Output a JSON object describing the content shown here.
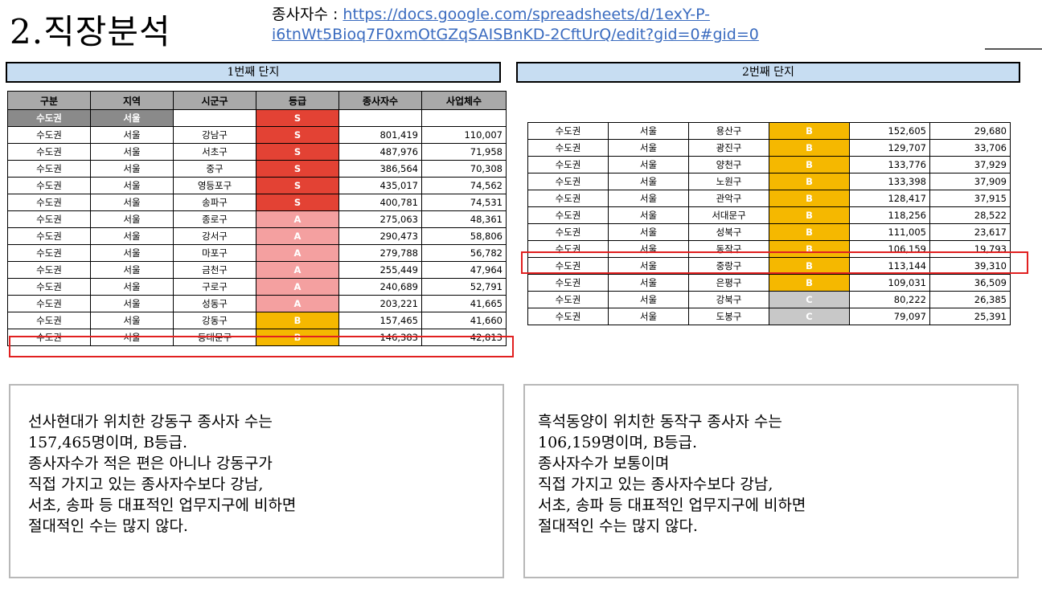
{
  "title": "2.직장분석",
  "source": {
    "label": "종사자수 : ",
    "link_line1": "https://docs.google.com/spreadsheets/d/1exY-P-",
    "link_line2": "i6tnWt5Bioq7F0xmOtGZqSAISBnKD-2CftUrQ/edit?gid=0#gid=0"
  },
  "complex1": {
    "header": "1번째 단지",
    "columns": [
      "구분",
      "지역",
      "시군구",
      "등급",
      "종사자수",
      "사업체수"
    ],
    "capital_row": {
      "segment": "수도권",
      "region": "서울",
      "grade": "S"
    },
    "rows": [
      {
        "seg": "수도권",
        "region": "서울",
        "district": "강남구",
        "grade": "S",
        "workers": "801,419",
        "businesses": "110,007"
      },
      {
        "seg": "수도권",
        "region": "서울",
        "district": "서초구",
        "grade": "S",
        "workers": "487,976",
        "businesses": "71,958"
      },
      {
        "seg": "수도권",
        "region": "서울",
        "district": "중구",
        "grade": "S",
        "workers": "386,564",
        "businesses": "70,308"
      },
      {
        "seg": "수도권",
        "region": "서울",
        "district": "영등포구",
        "grade": "S",
        "workers": "435,017",
        "businesses": "74,562"
      },
      {
        "seg": "수도권",
        "region": "서울",
        "district": "송파구",
        "grade": "S",
        "workers": "400,781",
        "businesses": "74,531"
      },
      {
        "seg": "수도권",
        "region": "서울",
        "district": "종로구",
        "grade": "A",
        "workers": "275,063",
        "businesses": "48,361"
      },
      {
        "seg": "수도권",
        "region": "서울",
        "district": "강서구",
        "grade": "A",
        "workers": "290,473",
        "businesses": "58,806"
      },
      {
        "seg": "수도권",
        "region": "서울",
        "district": "마포구",
        "grade": "A",
        "workers": "279,788",
        "businesses": "56,782"
      },
      {
        "seg": "수도권",
        "region": "서울",
        "district": "금천구",
        "grade": "A",
        "workers": "255,449",
        "businesses": "47,964"
      },
      {
        "seg": "수도권",
        "region": "서울",
        "district": "구로구",
        "grade": "A",
        "workers": "240,689",
        "businesses": "52,791"
      },
      {
        "seg": "수도권",
        "region": "서울",
        "district": "성동구",
        "grade": "A",
        "workers": "203,221",
        "businesses": "41,665"
      },
      {
        "seg": "수도권",
        "region": "서울",
        "district": "강동구",
        "grade": "B",
        "workers": "157,465",
        "businesses": "41,660"
      },
      {
        "seg": "수도권",
        "region": "서울",
        "district": "동대문구",
        "grade": "B",
        "workers": "146,383",
        "businesses": "42,813"
      }
    ],
    "note_lines": [
      "선사현대가 위치한 강동구 종사자 수는",
      "157,465명이며, B등급.",
      "종사자수가 적은 편은 아니나 강동구가",
      "직접 가지고 있는 종사자수보다 강남,",
      "서초, 송파 등 대표적인 업무지구에 비하면",
      "절대적인 수는 많지 않다."
    ]
  },
  "complex2": {
    "header": "2번째 단지",
    "rows": [
      {
        "seg": "수도권",
        "region": "서울",
        "district": "용산구",
        "grade": "B",
        "workers": "152,605",
        "businesses": "29,680"
      },
      {
        "seg": "수도권",
        "region": "서울",
        "district": "광진구",
        "grade": "B",
        "workers": "129,707",
        "businesses": "33,706"
      },
      {
        "seg": "수도권",
        "region": "서울",
        "district": "양천구",
        "grade": "B",
        "workers": "133,776",
        "businesses": "37,929"
      },
      {
        "seg": "수도권",
        "region": "서울",
        "district": "노원구",
        "grade": "B",
        "workers": "133,398",
        "businesses": "37,909"
      },
      {
        "seg": "수도권",
        "region": "서울",
        "district": "관악구",
        "grade": "B",
        "workers": "128,417",
        "businesses": "37,915"
      },
      {
        "seg": "수도권",
        "region": "서울",
        "district": "서대문구",
        "grade": "B",
        "workers": "118,256",
        "businesses": "28,522"
      },
      {
        "seg": "수도권",
        "region": "서울",
        "district": "성북구",
        "grade": "B",
        "workers": "111,005",
        "businesses": "23,617"
      },
      {
        "seg": "수도권",
        "region": "서울",
        "district": "동작구",
        "grade": "B",
        "workers": "106,159",
        "businesses": "19,793"
      },
      {
        "seg": "수도권",
        "region": "서울",
        "district": "중랑구",
        "grade": "B",
        "workers": "113,144",
        "businesses": "39,310"
      },
      {
        "seg": "수도권",
        "region": "서울",
        "district": "은평구",
        "grade": "B",
        "workers": "109,031",
        "businesses": "36,509"
      },
      {
        "seg": "수도권",
        "region": "서울",
        "district": "강북구",
        "grade": "C",
        "workers": "80,222",
        "businesses": "26,385"
      },
      {
        "seg": "수도권",
        "region": "서울",
        "district": "도봉구",
        "grade": "C",
        "workers": "79,097",
        "businesses": "25,391"
      }
    ],
    "note_lines": [
      "흑석동양이 위치한 동작구 종사자 수는",
      "106,159명이며, B등급.",
      "종사자수가 보통이며",
      "직접 가지고 있는 종사자수보다 강남,",
      "서초, 송파 등 대표적인 업무지구에 비하면",
      "절대적인 수는 많지 않다."
    ]
  },
  "grade_colors": {
    "S": "#e34234",
    "A": "#f4a0a0",
    "B": "#f5b800",
    "C": "#c8c8c8"
  },
  "highlight_color": "#e12020"
}
